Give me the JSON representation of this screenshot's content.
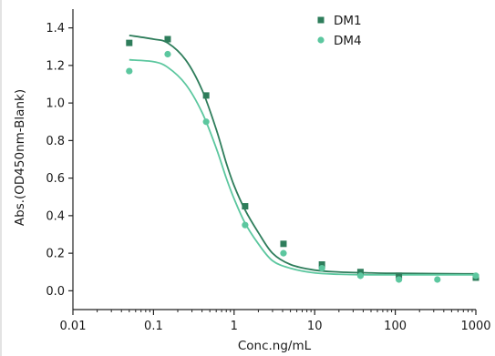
{
  "chart_data": {
    "type": "scatter",
    "xlabel": "Conc.ng/mL",
    "ylabel": "Abs.(OD450nm-Blank)",
    "xscale": "log",
    "xlim": [
      0.01,
      1000
    ],
    "ylim": [
      -0.1,
      1.5
    ],
    "xticks": [
      0.01,
      0.1,
      1,
      10,
      100,
      1000
    ],
    "xtick_labels": [
      "0.01",
      "0.1",
      "1",
      "10",
      "100",
      "1000"
    ],
    "yticks": [
      0.0,
      0.2,
      0.4,
      0.6,
      0.8,
      1.0,
      1.2,
      1.4
    ],
    "ytick_labels": [
      "0.0",
      "0.2",
      "0.4",
      "0.6",
      "0.8",
      "1.0",
      "1.2",
      "1.4"
    ],
    "grid": false,
    "legend_position": "top-right",
    "series": [
      {
        "name": "DM1",
        "marker": "square",
        "color": "#2e7d5b",
        "x": [
          0.05,
          0.15,
          0.45,
          1.37,
          4.1,
          12.3,
          37,
          111,
          1000
        ],
        "y": [
          1.32,
          1.34,
          1.04,
          0.45,
          0.25,
          0.14,
          0.1,
          0.08,
          0.07
        ],
        "fit_curve": [
          [
            0.05,
            1.36
          ],
          [
            0.1,
            1.34
          ],
          [
            0.15,
            1.32
          ],
          [
            0.25,
            1.23
          ],
          [
            0.4,
            1.07
          ],
          [
            0.6,
            0.86
          ],
          [
            0.8,
            0.68
          ],
          [
            1.0,
            0.56
          ],
          [
            1.37,
            0.43
          ],
          [
            2.0,
            0.31
          ],
          [
            3.0,
            0.2
          ],
          [
            5.0,
            0.14
          ],
          [
            10,
            0.11
          ],
          [
            20,
            0.1
          ],
          [
            50,
            0.095
          ],
          [
            100,
            0.093
          ],
          [
            1000,
            0.09
          ]
        ]
      },
      {
        "name": "DM4",
        "marker": "circle",
        "color": "#5cc79f",
        "x": [
          0.05,
          0.15,
          0.45,
          1.37,
          4.1,
          12.3,
          37,
          111,
          333,
          1000
        ],
        "y": [
          1.17,
          1.26,
          0.9,
          0.35,
          0.2,
          0.12,
          0.08,
          0.06,
          0.06,
          0.08
        ],
        "fit_curve": [
          [
            0.05,
            1.23
          ],
          [
            0.1,
            1.22
          ],
          [
            0.15,
            1.19
          ],
          [
            0.25,
            1.1
          ],
          [
            0.4,
            0.95
          ],
          [
            0.6,
            0.76
          ],
          [
            0.8,
            0.6
          ],
          [
            1.0,
            0.49
          ],
          [
            1.37,
            0.36
          ],
          [
            2.0,
            0.25
          ],
          [
            3.0,
            0.16
          ],
          [
            5.0,
            0.12
          ],
          [
            10,
            0.095
          ],
          [
            20,
            0.088
          ],
          [
            50,
            0.085
          ],
          [
            100,
            0.085
          ],
          [
            1000,
            0.085
          ]
        ]
      }
    ]
  }
}
